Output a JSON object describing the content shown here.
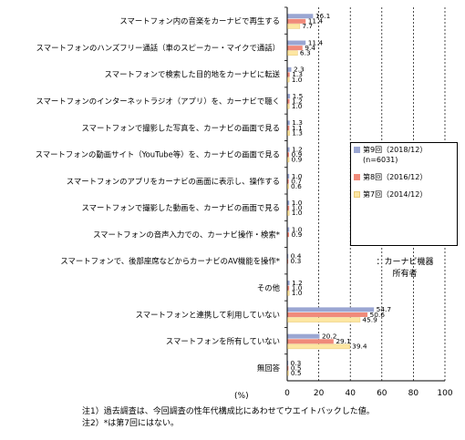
{
  "chart_data": {
    "type": "bar",
    "orientation": "horizontal",
    "categories": [
      "スマートフォン内の音楽をカーナビで再生する",
      "スマートフォンのハンズフリー通話（車のスピーカー・マイクで通話）",
      "スマートフォンで検索した目的地をカーナビに転送",
      "スマートフォンのインターネットラジオ（アプリ）を、カーナビで聴く",
      "スマートフォンで撮影した写真を、カーナビの画面で見る",
      "スマートフォンの動画サイト（YouTube等）を、カーナビの画面で見る",
      "スマートフォンのアプリをカーナビの画面に表示し、操作する",
      "スマートフォンで撮影した動画を、カーナビの画面で見る",
      "スマートフォンの音声入力での、カーナビ操作・検索*",
      "スマートフォンで、後部座席などからカーナビのAV機能を操作*",
      "その他",
      "スマートフォンと連携して利用していない",
      "スマートフォンを所有していない",
      "無回答"
    ],
    "series": [
      {
        "name": "第9回（2018/12）(n=6031)",
        "color": "#9aa6d2",
        "values": [
          16.1,
          11.4,
          2.3,
          1.5,
          1.3,
          1.2,
          1.0,
          1.0,
          1.0,
          0.4,
          1.2,
          54.7,
          20.2,
          0.3
        ],
        "labels": [
          "16.1",
          "11.4",
          "2.3",
          "1.5",
          "1.3",
          "1.2",
          "1.0",
          "1.0",
          "1.0",
          "0.4",
          "1.2",
          "54.7",
          "20.2",
          "0.3"
        ]
      },
      {
        "name": "第8回（2016/12）",
        "color": "#f08a7a",
        "values": [
          11.4,
          9.4,
          1.3,
          1.2,
          1.1,
          0.9,
          0.7,
          1.0,
          0.9,
          0.3,
          1.0,
          50.6,
          29.1,
          0.5
        ],
        "labels": [
          "11.4",
          "9.4",
          "1.3",
          "1.2",
          "1.1",
          "0.9",
          "0.7",
          "1.0",
          "0.9",
          "0.3",
          "1.0",
          "50.6",
          "29.1",
          "0.5"
        ]
      },
      {
        "name": "第7回（2014/12）",
        "color": "#fde6a2",
        "values": [
          7.7,
          6.3,
          1.0,
          1.0,
          1.3,
          0.9,
          0.6,
          1.0,
          null,
          null,
          1.0,
          45.9,
          39.4,
          0.5
        ],
        "labels": [
          "7.7",
          "6.3",
          "1.0",
          "1.0",
          "1.3",
          "0.9",
          "0.6",
          "1.0",
          "",
          "",
          "1.0",
          "45.9",
          "39.4",
          "0.5"
        ]
      }
    ],
    "xticks": [
      "0",
      "20",
      "40",
      "60",
      "80",
      "100"
    ],
    "xlim": [
      0,
      100
    ],
    "grid": true,
    "legend_position": "right",
    "x_unit": "(%)"
  },
  "legend": {
    "items": [
      {
        "line1": "第9回（2018/12）",
        "line2": "(n=6031)"
      },
      {
        "line1": "第8回（2016/12）",
        "line2": ""
      },
      {
        "line1": "第7回（2014/12）",
        "line2": ""
      }
    ],
    "note_line1": "：カーナビ機器",
    "note_line2": "所有者"
  },
  "notes": [
    "注1）過去調査は、今回調査の性年代構成比にあわせてウエイトバックした値。",
    "注2）*は第7回にはない。"
  ]
}
